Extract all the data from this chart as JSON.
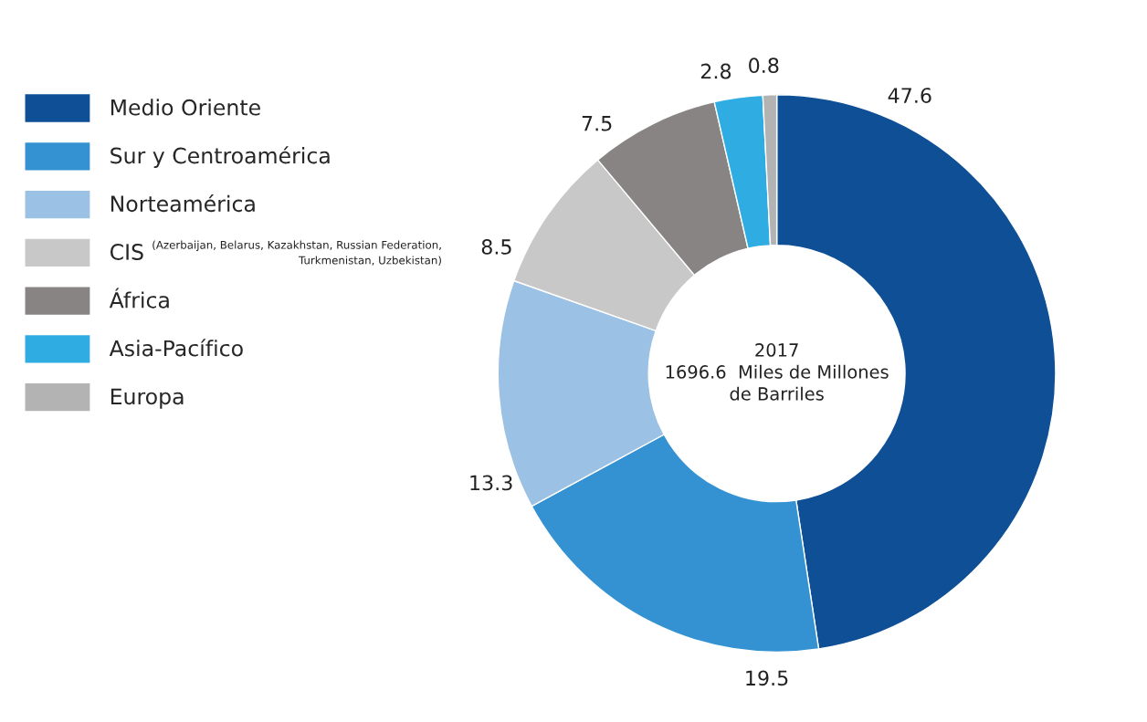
{
  "chart_data": {
    "type": "donut",
    "title": "2017\n1696.6  Miles de Millones\nde Barriles",
    "categories": [
      "Medio Oriente",
      "Sur y Centroamérica",
      "Norteamérica",
      "CIS",
      "África",
      "Asia-Pacífico",
      "Europa"
    ],
    "values": [
      47.6,
      19.5,
      13.3,
      8.5,
      7.5,
      2.8,
      0.8
    ],
    "colors": [
      "#0e4f96",
      "#3592d2",
      "#9bc1e5",
      "#c9c8c8",
      "#878483",
      "#2fade3",
      "#b3b3b3"
    ],
    "data_labels": true,
    "legend": "left",
    "annotations": [
      "(Azerbaijan, Belarus, Kazakhstan, Russian Federation,\nTurkmenistan, Uzbekistan)"
    ]
  }
}
